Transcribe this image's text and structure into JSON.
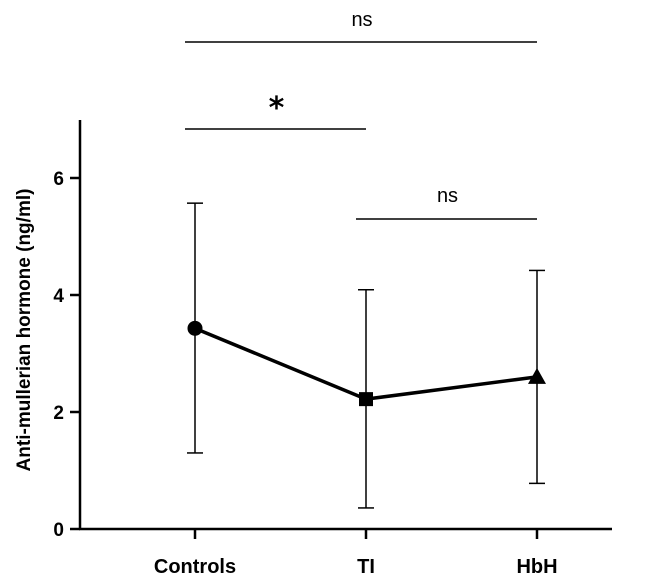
{
  "chart_data": {
    "type": "line",
    "categories": [
      "Controls",
      "TI",
      "HbH"
    ],
    "series": [
      {
        "values": [
          3.43,
          2.22,
          2.6
        ],
        "error_low": [
          1.3,
          0.36,
          0.78
        ],
        "error_high": [
          5.57,
          4.09,
          4.42
        ],
        "markers": [
          "circle",
          "square",
          "triangle"
        ]
      }
    ],
    "xlabel": "",
    "ylabel": "Anti-mullerian hormone (ng/ml)",
    "ylim": [
      0,
      7
    ],
    "yticks": [
      0,
      2,
      4,
      6
    ],
    "ytick_labels": [
      "0",
      "2",
      "4",
      "6"
    ],
    "grid": false,
    "significance": [
      {
        "from": "Controls",
        "to": "HbH",
        "label": "ns"
      },
      {
        "from": "Controls",
        "to": "TI",
        "label": "*"
      },
      {
        "from": "TI",
        "to": "HbH",
        "label": "ns"
      }
    ],
    "colors": {
      "line": "#000000",
      "axis": "#000000"
    }
  }
}
